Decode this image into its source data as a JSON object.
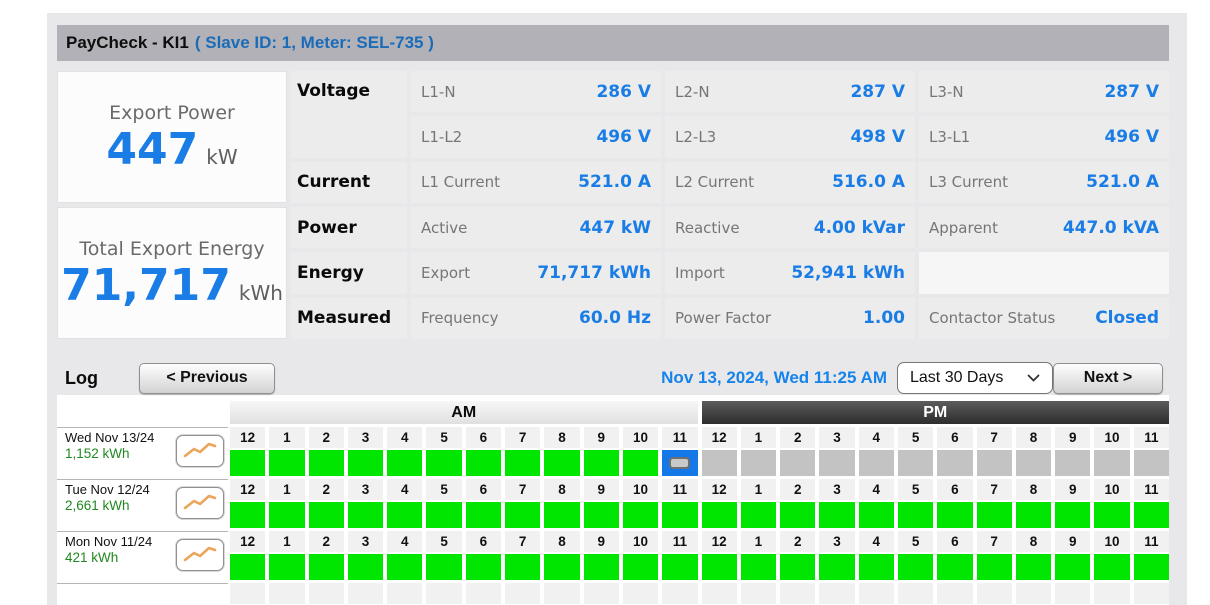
{
  "title": {
    "name": "PayCheck - KI1",
    "meta": "( Slave ID: 1, Meter: SEL-735 )"
  },
  "summary_cards": [
    {
      "label": "Export Power",
      "value": "447",
      "unit": "kW"
    },
    {
      "label": "Total Export Energy",
      "value": "71,717",
      "unit": "kWh"
    }
  ],
  "metrics_rows": [
    {
      "label": "Voltage",
      "label_span": 2,
      "cells": [
        {
          "name": "L1-N",
          "value": "286 V"
        },
        {
          "name": "L2-N",
          "value": "287 V"
        },
        {
          "name": "L3-N",
          "value": "287 V"
        }
      ]
    },
    {
      "label": null,
      "cells": [
        {
          "name": "L1-L2",
          "value": "496 V"
        },
        {
          "name": "L2-L3",
          "value": "498 V"
        },
        {
          "name": "L3-L1",
          "value": "496 V"
        }
      ]
    },
    {
      "label": "Current",
      "cells": [
        {
          "name": "L1 Current",
          "value": "521.0 A"
        },
        {
          "name": "L2 Current",
          "value": "516.0 A"
        },
        {
          "name": "L3 Current",
          "value": "521.0 A"
        }
      ]
    },
    {
      "label": "Power",
      "cells": [
        {
          "name": "Active",
          "value": "447 kW"
        },
        {
          "name": "Reactive",
          "value": "4.00 kVar"
        },
        {
          "name": "Apparent",
          "value": "447.0 kVA"
        }
      ]
    },
    {
      "label": "Energy",
      "cells": [
        {
          "name": "Export",
          "value": "71,717 kWh"
        },
        {
          "name": "Import",
          "value": "52,941 kWh"
        },
        {
          "name": "",
          "value": "",
          "empty": true
        }
      ]
    },
    {
      "label": "Measured",
      "cells": [
        {
          "name": "Frequency",
          "value": "60.0 Hz"
        },
        {
          "name": "Power Factor",
          "value": "1.00"
        },
        {
          "name": "Contactor Status",
          "value": "Closed"
        }
      ]
    }
  ],
  "log": {
    "heading": "Log",
    "previous_label": "< Previous",
    "datetime": "Nov 13, 2024, Wed 11:25 AM",
    "range_selected": "Last 30 Days",
    "next_label": "Next >",
    "am_label": "AM",
    "pm_label": "PM",
    "hours": [
      "12",
      "1",
      "2",
      "3",
      "4",
      "5",
      "6",
      "7",
      "8",
      "9",
      "10",
      "11"
    ],
    "days": [
      {
        "date": "Wed Nov 13/24",
        "energy": "1,152 kWh",
        "cells": [
          "on",
          "on",
          "on",
          "on",
          "on",
          "on",
          "on",
          "on",
          "on",
          "on",
          "on",
          "current",
          "off",
          "off",
          "off",
          "off",
          "off",
          "off",
          "off",
          "off",
          "off",
          "off",
          "off",
          "off"
        ]
      },
      {
        "date": "Tue Nov 12/24",
        "energy": "2,661 kWh",
        "cells": [
          "on",
          "on",
          "on",
          "on",
          "on",
          "on",
          "on",
          "on",
          "on",
          "on",
          "on",
          "on",
          "on",
          "on",
          "on",
          "on",
          "on",
          "on",
          "on",
          "on",
          "on",
          "on",
          "on",
          "on"
        ]
      },
      {
        "date": "Mon Nov 11/24",
        "energy": "421 kWh",
        "cells": [
          "on",
          "on",
          "on",
          "on",
          "on",
          "on",
          "on",
          "on",
          "on",
          "on",
          "on",
          "on",
          "on",
          "on",
          "on",
          "on",
          "on",
          "on",
          "on",
          "on",
          "on",
          "on",
          "on",
          "on"
        ]
      }
    ]
  },
  "colors": {
    "value_blue": "#1a7de6",
    "date_blue": "#1583ea",
    "energy_green_text": "#21891f",
    "cell_on_green": "#00e600",
    "cell_off_gray": "#c3c3c3",
    "cell_current_blue": "#1478e8",
    "title_bar_gray": "#b1b1b7",
    "page_gray": "#e8e8ea"
  }
}
